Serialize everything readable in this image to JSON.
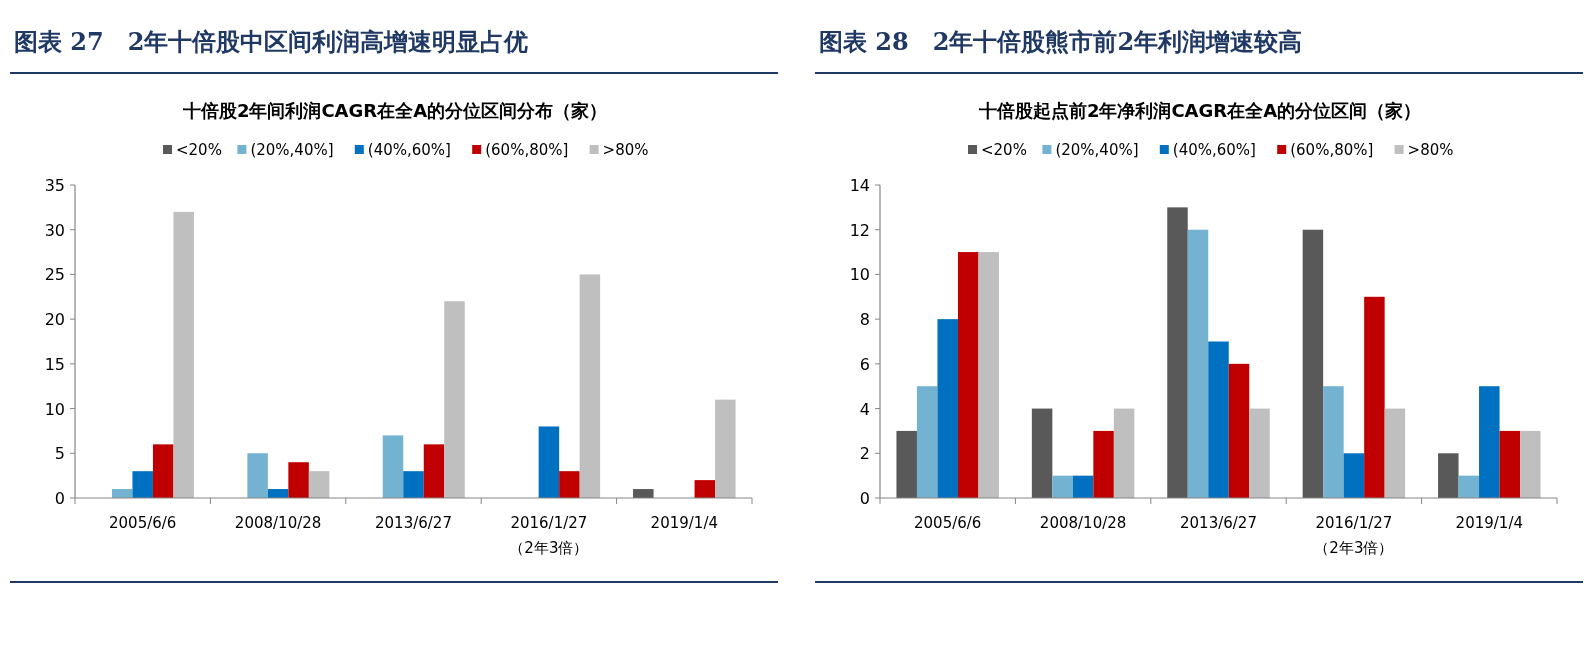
{
  "chart_data": [
    {
      "type": "bar",
      "title": "图表 27　2年十倍股中区间利润高增速明显占优",
      "subtitle": "十倍股2年间利润CAGR在全A的分位区间分布（家）",
      "categories": [
        "2005/6/6",
        "2008/10/28",
        "2013/6/27",
        "2016/1/27\n（2年3倍）",
        "2019/1/4"
      ],
      "ylim": [
        0,
        35
      ],
      "yticks": [
        0,
        5,
        10,
        15,
        20,
        25,
        30,
        35
      ],
      "grid": false,
      "legend": "top",
      "series": [
        {
          "name": "<20%",
          "color": "#595959",
          "values": [
            0,
            0,
            0,
            0,
            1
          ]
        },
        {
          "name": "(20%,40%]",
          "color": "#73b2d0",
          "values": [
            1,
            5,
            7,
            0,
            0
          ]
        },
        {
          "name": "(40%,60%]",
          "color": "#0070c0",
          "values": [
            3,
            1,
            3,
            8,
            0
          ]
        },
        {
          "name": "(60%,80%]",
          "color": "#c00000",
          "values": [
            6,
            4,
            6,
            3,
            2
          ]
        },
        {
          "name": ">80%",
          "color": "#bfbfbf",
          "values": [
            32,
            3,
            22,
            25,
            11
          ]
        }
      ]
    },
    {
      "type": "bar",
      "title": "图表 28　2年十倍股熊市前2年利润增速较高",
      "subtitle": "十倍股起点前2年净利润CAGR在全A的分位区间（家）",
      "categories": [
        "2005/6/6",
        "2008/10/28",
        "2013/6/27",
        "2016/1/27\n（2年3倍）",
        "2019/1/4"
      ],
      "ylim": [
        0,
        14
      ],
      "yticks": [
        0,
        2,
        4,
        6,
        8,
        10,
        12,
        14
      ],
      "grid": false,
      "legend": "top",
      "series": [
        {
          "name": "<20%",
          "color": "#595959",
          "values": [
            3,
            4,
            13,
            12,
            2
          ]
        },
        {
          "name": "(20%,40%]",
          "color": "#73b2d0",
          "values": [
            5,
            1,
            12,
            5,
            1
          ]
        },
        {
          "name": "(40%,60%]",
          "color": "#0070c0",
          "values": [
            8,
            1,
            7,
            2,
            5
          ]
        },
        {
          "name": "(60%,80%]",
          "color": "#c00000",
          "values": [
            11,
            3,
            6,
            9,
            3
          ]
        },
        {
          "name": ">80%",
          "color": "#bfbfbf",
          "values": [
            11,
            4,
            4,
            4,
            3
          ]
        }
      ]
    }
  ]
}
